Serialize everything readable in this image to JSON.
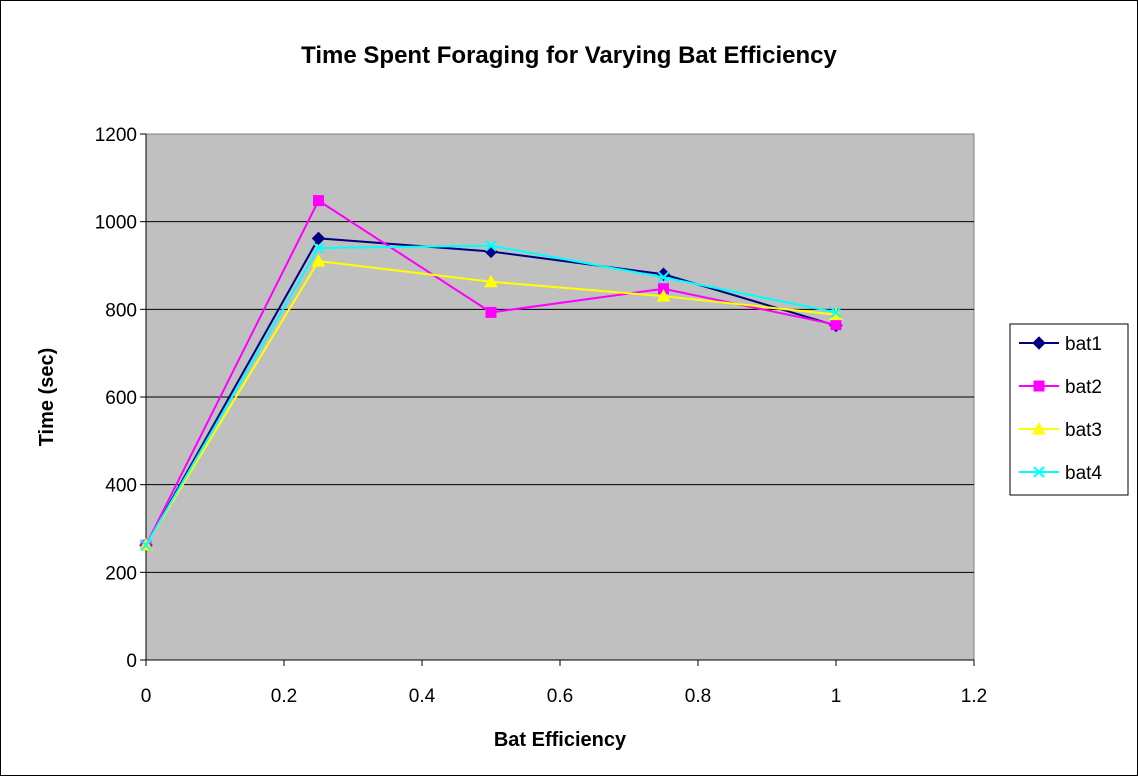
{
  "chart_data": {
    "type": "line",
    "title": "Time Spent Foraging for Varying Bat Efficiency",
    "xlabel": "Bat Efficiency",
    "ylabel": "Time (sec)",
    "xlim": [
      0,
      1.2
    ],
    "ylim": [
      0,
      1200
    ],
    "x_ticks": [
      "0",
      "0.2",
      "0.4",
      "0.6",
      "0.8",
      "1",
      "1.2"
    ],
    "y_ticks": [
      "0",
      "200",
      "400",
      "600",
      "800",
      "1000",
      "1200"
    ],
    "grid": "horizontal",
    "plot_background": "#c0c0c0",
    "legend_position": "right",
    "x": [
      0,
      0.25,
      0.5,
      0.75,
      1
    ],
    "series": [
      {
        "name": "bat1",
        "color": "#000080",
        "marker": "diamond",
        "values": [
          262,
          962,
          932,
          880,
          763
        ]
      },
      {
        "name": "bat2",
        "color": "#ff00ff",
        "marker": "square",
        "values": [
          262,
          1048,
          793,
          847,
          765
        ]
      },
      {
        "name": "bat3",
        "color": "#ffff00",
        "marker": "triangle",
        "values": [
          262,
          910,
          863,
          830,
          788
        ]
      },
      {
        "name": "bat4",
        "color": "#00ffff",
        "marker": "x",
        "values": [
          262,
          940,
          945,
          873,
          793
        ]
      }
    ]
  }
}
